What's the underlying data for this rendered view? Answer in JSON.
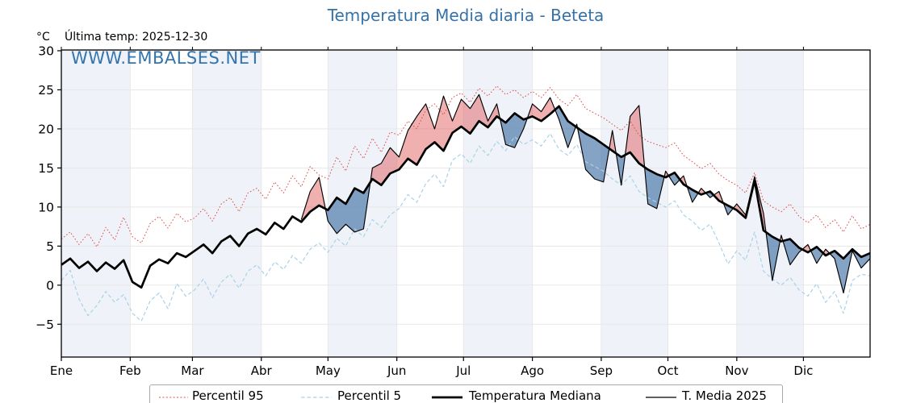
{
  "header": {
    "title": "Temperatura Media diaria - Beteta",
    "unit_label": "°C",
    "last_temp_label": "Última temp: 2025-12-30",
    "watermark": "WWW.EMBALSES.NET"
  },
  "legend": {
    "items": [
      {
        "label": "Percentil 95"
      },
      {
        "label": "Percentil 5"
      },
      {
        "label": "Temperatura Mediana"
      },
      {
        "label": "T. Media 2025"
      }
    ]
  },
  "colors": {
    "title": "#3572a8",
    "watermark": "#3474ad",
    "p95_line": "#e04b4b",
    "p5_line": "#a9d2e6",
    "median_line": "#000000",
    "t2025_line": "#000000",
    "fill_above": "rgba(222,80,80,0.45)",
    "fill_below": "rgba(58,106,160,0.62)",
    "band": "#eff3f9",
    "grid": "#e7e7e7",
    "border": "#000000"
  },
  "chart_data": {
    "type": "line",
    "title": "Temperatura Media diaria - Beteta",
    "subtitle": "Última temp: 2025-12-30",
    "xlabel": "",
    "ylabel": "°C",
    "x_unit": "day_of_year",
    "grid": true,
    "legend_position": "bottom",
    "months": [
      "Ene",
      "Feb",
      "Mar",
      "Abr",
      "May",
      "Jun",
      "Jul",
      "Ago",
      "Sep",
      "Oct",
      "Nov",
      "Dic"
    ],
    "month_start_days": [
      1,
      32,
      60,
      91,
      121,
      152,
      182,
      213,
      244,
      274,
      305,
      335,
      366
    ],
    "shaded_months": [
      "Ene",
      "Mar",
      "May",
      "Jul",
      "Sep",
      "Nov"
    ],
    "y_axis": {
      "ticks": [
        30,
        25,
        20,
        15,
        10,
        5,
        0,
        -5
      ],
      "min": -9.2,
      "max": 30.1
    },
    "x_days": [
      1,
      5,
      9,
      13,
      17,
      21,
      25,
      29,
      33,
      37,
      41,
      45,
      49,
      53,
      57,
      61,
      65,
      69,
      73,
      77,
      81,
      85,
      89,
      93,
      97,
      101,
      105,
      109,
      113,
      117,
      121,
      125,
      129,
      133,
      137,
      141,
      145,
      149,
      153,
      157,
      161,
      165,
      169,
      173,
      177,
      181,
      185,
      189,
      193,
      197,
      201,
      205,
      209,
      213,
      217,
      221,
      225,
      229,
      233,
      237,
      241,
      245,
      249,
      253,
      257,
      261,
      265,
      269,
      273,
      277,
      281,
      285,
      289,
      293,
      297,
      301,
      305,
      309,
      313,
      317,
      321,
      325,
      329,
      333,
      337,
      341,
      345,
      349,
      353,
      357,
      361,
      365
    ],
    "series": [
      {
        "name": "Percentil 95",
        "style": "dotted-red",
        "values": [
          5.9,
          6.8,
          5.2,
          6.6,
          4.9,
          7.4,
          5.8,
          8.7,
          6.2,
          5.4,
          7.9,
          8.8,
          7.3,
          9.2,
          8.1,
          8.6,
          9.8,
          8.2,
          10.4,
          11.2,
          9.4,
          11.8,
          12.4,
          11.0,
          13.2,
          11.8,
          14.0,
          12.6,
          15.2,
          14.1,
          13.6,
          16.4,
          14.6,
          17.8,
          16.2,
          18.8,
          17.0,
          19.6,
          19.2,
          21.0,
          20.0,
          22.4,
          23.2,
          21.8,
          24.0,
          24.6,
          23.4,
          25.2,
          24.2,
          25.5,
          24.4,
          25.0,
          24.0,
          24.8,
          24.0,
          25.3,
          23.8,
          23.0,
          24.4,
          22.6,
          22.0,
          21.4,
          20.6,
          19.8,
          21.0,
          19.2,
          18.4,
          18.0,
          17.6,
          18.2,
          16.6,
          15.8,
          14.9,
          15.6,
          14.2,
          13.4,
          12.8,
          11.8,
          14.4,
          10.8,
          10.0,
          9.4,
          10.4,
          8.8,
          8.0,
          9.0,
          7.4,
          8.4,
          6.8,
          8.9,
          7.2,
          7.8
        ]
      },
      {
        "name": "Percentil 5",
        "style": "dashed-lightblue",
        "values": [
          0.6,
          1.9,
          -1.8,
          -3.9,
          -2.6,
          -0.8,
          -2.2,
          -1.2,
          -3.6,
          -4.6,
          -2.0,
          -1.0,
          -3.0,
          0.2,
          -1.4,
          -0.6,
          0.8,
          -1.6,
          0.4,
          1.4,
          -0.4,
          1.8,
          2.6,
          1.2,
          3.0,
          2.0,
          3.8,
          2.8,
          4.6,
          5.4,
          4.2,
          6.0,
          5.0,
          7.2,
          6.2,
          8.4,
          7.4,
          9.0,
          9.8,
          11.6,
          10.6,
          13.0,
          14.2,
          12.6,
          16.0,
          16.8,
          15.6,
          17.8,
          16.6,
          18.4,
          17.2,
          19.0,
          18.0,
          18.6,
          17.8,
          19.4,
          17.4,
          16.6,
          18.0,
          15.8,
          15.2,
          14.6,
          13.6,
          12.8,
          14.0,
          12.0,
          11.2,
          10.6,
          10.0,
          10.8,
          9.0,
          8.2,
          7.0,
          7.8,
          5.4,
          2.7,
          4.4,
          3.2,
          6.8,
          1.8,
          0.8,
          0.0,
          1.0,
          -0.6,
          -1.4,
          0.2,
          -2.2,
          -0.8,
          -3.6,
          0.6,
          1.4,
          1.2
        ]
      },
      {
        "name": "Temperatura Mediana",
        "style": "thick-black",
        "values": [
          2.6,
          3.4,
          2.2,
          3.0,
          1.8,
          2.9,
          2.1,
          3.2,
          0.4,
          -0.3,
          2.5,
          3.3,
          2.8,
          4.1,
          3.6,
          4.4,
          5.2,
          4.1,
          5.6,
          6.3,
          5.0,
          6.6,
          7.2,
          6.5,
          8.0,
          7.2,
          8.8,
          8.1,
          9.4,
          10.2,
          9.6,
          11.2,
          10.4,
          12.4,
          11.8,
          13.6,
          12.8,
          14.3,
          14.8,
          16.2,
          15.4,
          17.4,
          18.3,
          17.2,
          19.5,
          20.3,
          19.4,
          21.0,
          20.2,
          21.6,
          20.8,
          22.0,
          21.2,
          21.6,
          21.0,
          21.9,
          22.9,
          21.0,
          20.2,
          19.4,
          18.8,
          18.0,
          17.2,
          16.4,
          17.0,
          15.6,
          14.8,
          14.2,
          13.8,
          14.4,
          12.9,
          12.2,
          11.6,
          12.0,
          10.8,
          10.2,
          9.6,
          8.6,
          13.4,
          7.0,
          6.2,
          5.6,
          5.9,
          4.8,
          4.2,
          4.9,
          3.8,
          4.4,
          3.4,
          4.6,
          3.6,
          4.1
        ]
      },
      {
        "name": "T. Media 2025",
        "style": "thin-black-with-deviation-fill",
        "values": [
          null,
          null,
          null,
          null,
          null,
          null,
          null,
          null,
          null,
          null,
          null,
          null,
          null,
          null,
          null,
          null,
          null,
          null,
          null,
          null,
          null,
          null,
          null,
          null,
          null,
          null,
          null,
          8.4,
          12.0,
          13.8,
          8.2,
          6.6,
          7.8,
          6.8,
          7.2,
          15.0,
          15.6,
          17.6,
          16.4,
          19.8,
          21.6,
          23.2,
          20.0,
          24.2,
          21.0,
          23.8,
          22.6,
          24.4,
          21.0,
          23.2,
          18.0,
          17.6,
          20.0,
          23.2,
          22.2,
          24.0,
          21.2,
          17.6,
          20.6,
          14.8,
          13.6,
          13.2,
          19.8,
          12.8,
          21.6,
          23.0,
          10.4,
          9.8,
          14.6,
          12.8,
          14.0,
          10.6,
          12.4,
          11.2,
          12.0,
          9.0,
          10.4,
          9.0,
          13.9,
          9.2,
          0.6,
          6.4,
          2.6,
          4.2,
          5.2,
          2.8,
          4.6,
          3.4,
          -1.0,
          4.4,
          2.2,
          3.4
        ]
      }
    ]
  }
}
